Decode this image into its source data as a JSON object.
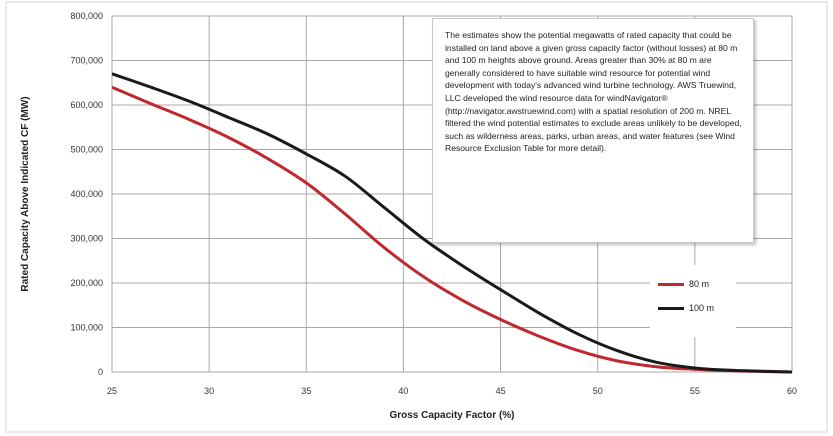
{
  "chart_data": {
    "type": "line",
    "title": "",
    "xlabel": "Gross Capacity Factor (%)",
    "ylabel": "Rated Capacity Above Indicated CF (MW)",
    "xlim": [
      25,
      60
    ],
    "ylim": [
      0,
      800000
    ],
    "x_ticks": [
      25,
      30,
      35,
      40,
      45,
      50,
      55,
      60
    ],
    "x_tick_labels": [
      "25",
      "30",
      "35",
      "40",
      "45",
      "50",
      "55",
      "60"
    ],
    "y_ticks": [
      0,
      100000,
      200000,
      300000,
      400000,
      500000,
      600000,
      700000,
      800000
    ],
    "y_tick_labels": [
      "0",
      "100,000",
      "200,000",
      "300,000",
      "400,000",
      "500,000",
      "600,000",
      "700,000",
      "800,000"
    ],
    "grid": true,
    "legend_position": "bottom-right",
    "series": [
      {
        "name": "80 m",
        "color": "#c0282d",
        "x": [
          25,
          27,
          29,
          31,
          33,
          35,
          37,
          39,
          41,
          43,
          45,
          47,
          49,
          51,
          53,
          55,
          57,
          60
        ],
        "y": [
          640000,
          603000,
          567000,
          527000,
          480000,
          425000,
          355000,
          280000,
          215000,
          162000,
          118000,
          80000,
          48000,
          25000,
          12000,
          6000,
          2500,
          0
        ]
      },
      {
        "name": "100 m",
        "color": "#1a1a1a",
        "x": [
          25,
          27,
          29,
          31,
          33,
          35,
          37,
          39,
          41,
          43,
          45,
          47,
          49,
          51,
          53,
          55,
          57,
          60
        ],
        "y": [
          670000,
          640000,
          608000,
          572000,
          535000,
          490000,
          440000,
          370000,
          300000,
          240000,
          185000,
          132000,
          85000,
          48000,
          22000,
          9000,
          3500,
          0
        ]
      }
    ],
    "annotation": "The estimates show the potential megawatts of rated capacity that could be installed on land above a given gross capacity factor (without losses) at 80 m and 100 m heights above ground. Areas greater than 30% at 80 m are generally considered to have suitable wind resource for potential wind development with today's advanced wind turbine technology. AWS Truewind, LLC developed the wind resource data for windNavigator® (http://navigator.awstruewind.com) with a spatial resolution of 200 m. NREL filtered the wind potential estimates to exclude areas unlikely to be developed, such as wilderness areas, parks, urban areas, and water features (see Wind Resource Exclusion Table for more detail)."
  }
}
